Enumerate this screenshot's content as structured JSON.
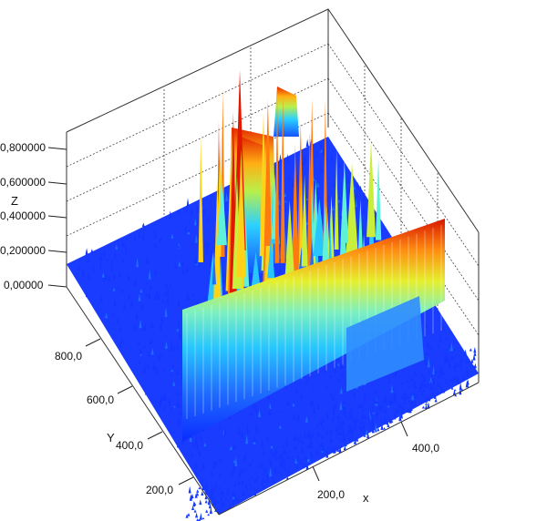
{
  "chart_data": {
    "type": "surface3d",
    "title": "",
    "axes": {
      "x": {
        "label": "x",
        "ticks": [
          "200,0",
          "400,0"
        ],
        "tick_values": [
          200,
          400
        ],
        "range": [
          0,
          480
        ]
      },
      "y": {
        "label": "Y",
        "ticks": [
          "200,0",
          "400,0",
          "600,0",
          "800,0"
        ],
        "tick_values": [
          200,
          400,
          600,
          800
        ],
        "range": [
          100,
          950
        ]
      },
      "z": {
        "label": "Z",
        "ticks": [
          "0,00000",
          "0,200000",
          "0,400000",
          "0,600000",
          "0,800000"
        ],
        "tick_values": [
          0,
          0.2,
          0.4,
          0.6,
          0.8
        ],
        "range": [
          0,
          0.85
        ]
      }
    },
    "colormap": [
      "#0b2cff",
      "#1f6cff",
      "#27c6ff",
      "#5ff2d8",
      "#c9ef3c",
      "#ffd21a",
      "#ff7a0f",
      "#e01800"
    ],
    "grid": true,
    "features": {
      "background_noise_level": 0.08,
      "ridge": {
        "x_from": 120,
        "x_to": 480,
        "y_at": 420,
        "z_from": 0.62,
        "z_to": 0.45
      },
      "peak_cluster": {
        "x_center": 180,
        "y_center": 780,
        "z_max": 0.82
      }
    }
  }
}
